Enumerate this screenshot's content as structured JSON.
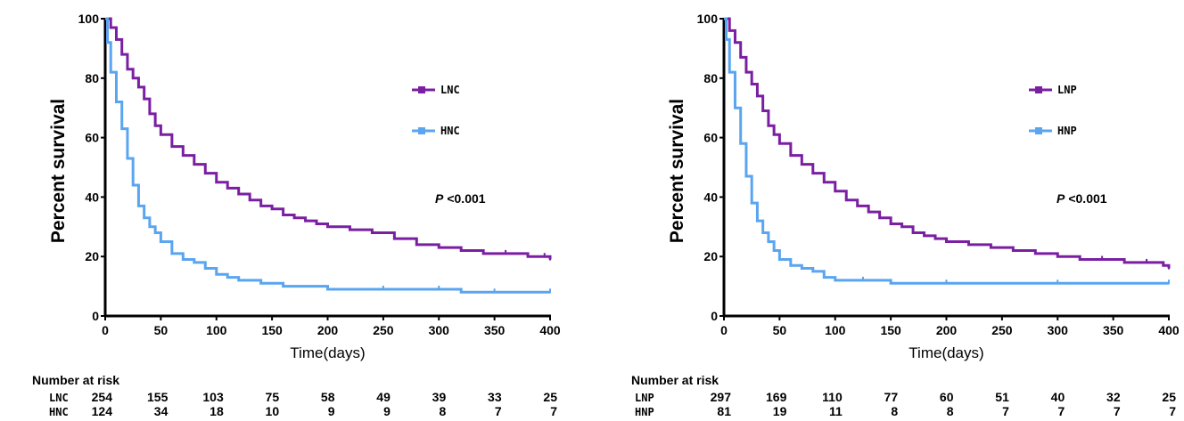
{
  "chart_data": [
    {
      "type": "line",
      "ylabel": "Percent survival",
      "xlabel": "Time(days)",
      "xlim": [
        0,
        400
      ],
      "ylim": [
        0,
        100
      ],
      "x_ticks": [
        0,
        50,
        100,
        150,
        200,
        250,
        300,
        350,
        400
      ],
      "y_ticks": [
        0,
        20,
        40,
        60,
        80,
        100
      ],
      "legend_position": "right",
      "p_value": {
        "label": "P",
        "value": "<0.001"
      },
      "series": [
        {
          "name": "LNC",
          "color": "#7B1FA2",
          "x": [
            0,
            5,
            10,
            15,
            20,
            25,
            30,
            35,
            40,
            45,
            50,
            60,
            70,
            80,
            90,
            100,
            110,
            120,
            130,
            140,
            150,
            160,
            170,
            180,
            190,
            200,
            220,
            240,
            260,
            280,
            300,
            320,
            340,
            360,
            380,
            395,
            400
          ],
          "y": [
            100,
            97,
            93,
            88,
            83,
            80,
            77,
            73,
            68,
            64,
            61,
            57,
            54,
            51,
            48,
            45,
            43,
            41,
            39,
            37,
            36,
            34,
            33,
            32,
            31,
            30,
            29,
            28,
            26,
            24,
            23,
            22,
            21,
            21,
            20,
            20,
            19
          ]
        },
        {
          "name": "HNC",
          "color": "#5AA5EF",
          "x": [
            0,
            2,
            5,
            10,
            15,
            20,
            25,
            30,
            35,
            40,
            45,
            50,
            60,
            70,
            80,
            90,
            100,
            110,
            120,
            140,
            160,
            200,
            250,
            300,
            320,
            350,
            400
          ],
          "y": [
            100,
            92,
            82,
            72,
            63,
            53,
            44,
            37,
            33,
            30,
            28,
            25,
            21,
            19,
            18,
            16,
            14,
            13,
            12,
            11,
            10,
            9,
            9,
            9,
            8,
            8,
            8
          ]
        }
      ],
      "risk_table": {
        "title": "Number at risk",
        "rows": [
          {
            "label": "LNC",
            "values": [
              "254",
              "155",
              "103",
              "75",
              "58",
              "49",
              "39",
              "33",
              "25"
            ]
          },
          {
            "label": "HNC",
            "values": [
              "124",
              "34",
              "18",
              "10",
              "9",
              "9",
              "8",
              "7",
              "7"
            ]
          }
        ]
      }
    },
    {
      "type": "line",
      "ylabel": "Percent survival",
      "xlabel": "Time(days)",
      "xlim": [
        0,
        400
      ],
      "ylim": [
        0,
        100
      ],
      "x_ticks": [
        0,
        50,
        100,
        150,
        200,
        250,
        300,
        350,
        400
      ],
      "y_ticks": [
        0,
        20,
        40,
        60,
        80,
        100
      ],
      "legend_position": "right",
      "p_value": {
        "label": "P",
        "value": "<0.001"
      },
      "series": [
        {
          "name": "LNP",
          "color": "#7B1FA2",
          "x": [
            0,
            5,
            10,
            15,
            20,
            25,
            30,
            35,
            40,
            45,
            50,
            60,
            70,
            80,
            90,
            100,
            110,
            120,
            130,
            140,
            150,
            160,
            170,
            180,
            190,
            200,
            220,
            240,
            260,
            280,
            300,
            320,
            340,
            360,
            380,
            395,
            400
          ],
          "y": [
            100,
            96,
            92,
            87,
            82,
            78,
            74,
            69,
            64,
            61,
            58,
            54,
            51,
            48,
            45,
            42,
            39,
            37,
            35,
            33,
            31,
            30,
            28,
            27,
            26,
            25,
            24,
            23,
            22,
            21,
            20,
            19,
            19,
            18,
            18,
            17,
            16
          ]
        },
        {
          "name": "HNP",
          "color": "#5AA5EF",
          "x": [
            0,
            2,
            5,
            10,
            15,
            20,
            25,
            30,
            35,
            40,
            45,
            50,
            60,
            70,
            80,
            90,
            100,
            125,
            150,
            200,
            300,
            400
          ],
          "y": [
            100,
            93,
            82,
            70,
            58,
            47,
            38,
            32,
            28,
            25,
            22,
            19,
            17,
            16,
            15,
            13,
            12,
            12,
            11,
            11,
            11,
            11
          ]
        }
      ],
      "risk_table": {
        "title": "Number at risk",
        "rows": [
          {
            "label": "LNP",
            "values": [
              "297",
              "169",
              "110",
              "77",
              "60",
              "51",
              "40",
              "32",
              "25"
            ]
          },
          {
            "label": "HNP",
            "values": [
              "81",
              "19",
              "11",
              "8",
              "8",
              "7",
              "7",
              "7",
              "7"
            ]
          }
        ]
      }
    }
  ]
}
